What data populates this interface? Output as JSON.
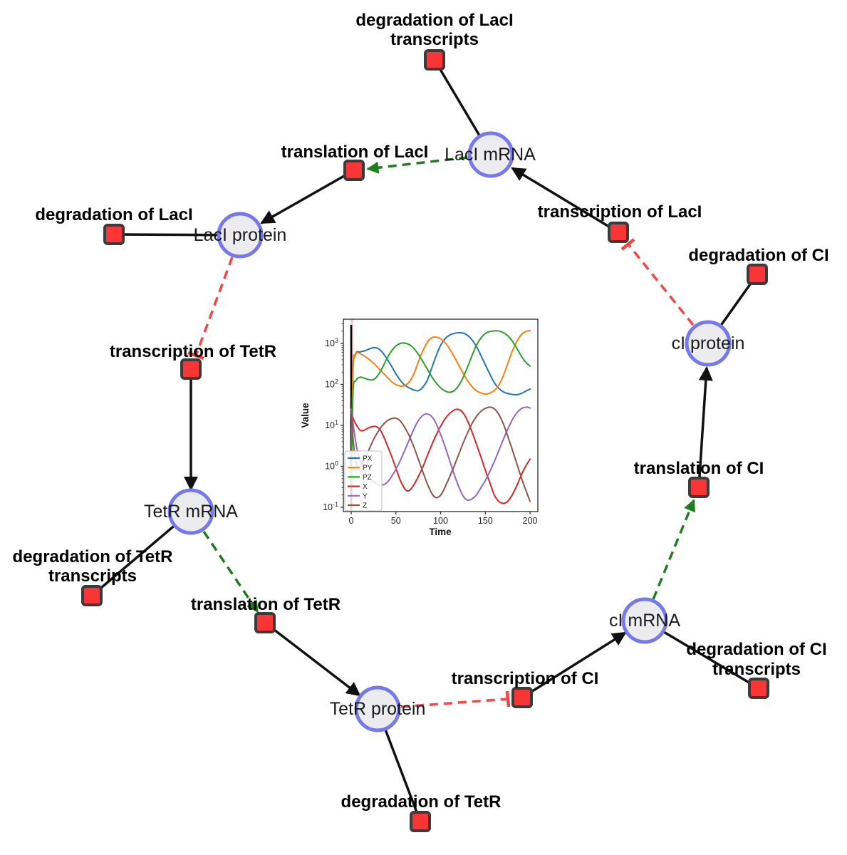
{
  "diagram": {
    "species": [
      {
        "id": "laci-mrna",
        "label": "LacI mRNA"
      },
      {
        "id": "laci-protein",
        "label": "LacI protein"
      },
      {
        "id": "tetr-mrna",
        "label": "TetR mRNA"
      },
      {
        "id": "tetr-protein",
        "label": "TetR protein"
      },
      {
        "id": "ci-mrna",
        "label": "cI mRNA"
      },
      {
        "id": "ci-protein",
        "label": "cI protein"
      }
    ],
    "reactions": [
      {
        "id": "degradation-laci-transcripts",
        "label_lines": [
          "degradation of LacI",
          "transcripts"
        ]
      },
      {
        "id": "translation-laci",
        "label": "translation of LacI"
      },
      {
        "id": "degradation-laci",
        "label": "degradation of LacI"
      },
      {
        "id": "transcription-tetr",
        "label": "transcription of TetR"
      },
      {
        "id": "degradation-tetr-transcripts",
        "label_lines": [
          "degradation of TetR",
          "transcripts"
        ]
      },
      {
        "id": "translation-tetr",
        "label": "translation of TetR"
      },
      {
        "id": "degradation-tetr",
        "label": "degradation of TetR"
      },
      {
        "id": "transcription-ci",
        "label": "transcription of CI"
      },
      {
        "id": "degradation-ci-transcripts",
        "label_lines": [
          "degradation of CI",
          "transcripts"
        ]
      },
      {
        "id": "translation-ci",
        "label": "translation of CI"
      },
      {
        "id": "degradation-ci",
        "label": "degradation of CI"
      },
      {
        "id": "transcription-laci",
        "label": "transcription of LacI"
      }
    ],
    "colors": {
      "species_fill": "#ececee",
      "species_border": "#7678ee",
      "reaction_fill": "#f93535",
      "reaction_border": "#3b3b3b",
      "edge_black": "#111111",
      "edge_activation": "#1e7d1e",
      "edge_inhibition": "#f54545"
    }
  },
  "chart_data": {
    "type": "line",
    "title": "",
    "xlabel": "Time",
    "ylabel": "Value",
    "x_ticks": [
      0,
      50,
      100,
      150,
      200
    ],
    "y_scale": "log",
    "y_tick_exponents": [
      -1,
      0,
      1,
      2,
      3
    ],
    "xlim": [
      -10,
      210
    ],
    "ylim_log": [
      -1.1,
      3.6
    ],
    "grid": false,
    "legend_position": "lower left",
    "axvline": {
      "x": 0,
      "color": "#000000"
    },
    "startup_band": {
      "x0": -0.7,
      "x1": 2.5,
      "color": "#d98080",
      "opacity": 0.4
    },
    "series": [
      {
        "name": "PX",
        "color": "#1f77b4",
        "points": [
          [
            0,
            0.3
          ],
          [
            2,
            200
          ],
          [
            5,
            560
          ],
          [
            10,
            620
          ],
          [
            15,
            660
          ],
          [
            20,
            730
          ],
          [
            25,
            790
          ],
          [
            30,
            755
          ],
          [
            35,
            600
          ],
          [
            40,
            420
          ],
          [
            45,
            280
          ],
          [
            50,
            180
          ],
          [
            55,
            125
          ],
          [
            60,
            95
          ],
          [
            65,
            82
          ],
          [
            70,
            73
          ],
          [
            75,
            70
          ],
          [
            80,
            85
          ],
          [
            85,
            125
          ],
          [
            90,
            250
          ],
          [
            95,
            500
          ],
          [
            100,
            900
          ],
          [
            105,
            1300
          ],
          [
            110,
            1600
          ],
          [
            115,
            1750
          ],
          [
            120,
            1820
          ],
          [
            125,
            1790
          ],
          [
            130,
            1580
          ],
          [
            135,
            1230
          ],
          [
            140,
            840
          ],
          [
            145,
            510
          ],
          [
            150,
            300
          ],
          [
            155,
            178
          ],
          [
            160,
            110
          ],
          [
            165,
            80
          ],
          [
            170,
            66
          ],
          [
            175,
            60
          ],
          [
            180,
            57
          ],
          [
            185,
            56
          ],
          [
            190,
            60
          ],
          [
            195,
            68
          ],
          [
            200,
            77
          ]
        ]
      },
      {
        "name": "PY",
        "color": "#ff7f0e",
        "points": [
          [
            0,
            0.3
          ],
          [
            2,
            250
          ],
          [
            4,
            480
          ],
          [
            6,
            585
          ],
          [
            8,
            590
          ],
          [
            10,
            565
          ],
          [
            15,
            490
          ],
          [
            20,
            410
          ],
          [
            25,
            330
          ],
          [
            30,
            255
          ],
          [
            35,
            196
          ],
          [
            40,
            152
          ],
          [
            45,
            118
          ],
          [
            50,
            99
          ],
          [
            55,
            91
          ],
          [
            60,
            94
          ],
          [
            65,
            116
          ],
          [
            70,
            180
          ],
          [
            75,
            350
          ],
          [
            80,
            650
          ],
          [
            85,
            1060
          ],
          [
            90,
            1380
          ],
          [
            95,
            1430
          ],
          [
            100,
            1300
          ],
          [
            105,
            1040
          ],
          [
            110,
            740
          ],
          [
            115,
            480
          ],
          [
            120,
            300
          ],
          [
            125,
            190
          ],
          [
            130,
            124
          ],
          [
            135,
            89
          ],
          [
            140,
            70
          ],
          [
            145,
            62
          ],
          [
            150,
            58
          ],
          [
            155,
            61
          ],
          [
            160,
            71
          ],
          [
            165,
            96
          ],
          [
            170,
            162
          ],
          [
            175,
            320
          ],
          [
            180,
            640
          ],
          [
            185,
            1100
          ],
          [
            190,
            1620
          ],
          [
            195,
            1960
          ],
          [
            200,
            2070
          ]
        ]
      },
      {
        "name": "PZ",
        "color": "#2ca02c",
        "points": [
          [
            0,
            0.3
          ],
          [
            2,
            60
          ],
          [
            5,
            122
          ],
          [
            10,
            150
          ],
          [
            15,
            141
          ],
          [
            20,
            131
          ],
          [
            25,
            131
          ],
          [
            30,
            168
          ],
          [
            35,
            260
          ],
          [
            40,
            430
          ],
          [
            45,
            650
          ],
          [
            50,
            870
          ],
          [
            55,
            1000
          ],
          [
            60,
            1020
          ],
          [
            65,
            935
          ],
          [
            70,
            755
          ],
          [
            75,
            545
          ],
          [
            80,
            365
          ],
          [
            85,
            238
          ],
          [
            90,
            155
          ],
          [
            95,
            109
          ],
          [
            100,
            82
          ],
          [
            105,
            69
          ],
          [
            110,
            64
          ],
          [
            115,
            70
          ],
          [
            120,
            92
          ],
          [
            125,
            146
          ],
          [
            130,
            262
          ],
          [
            135,
            500
          ],
          [
            140,
            900
          ],
          [
            145,
            1350
          ],
          [
            150,
            1750
          ],
          [
            155,
            1950
          ],
          [
            160,
            2030
          ],
          [
            165,
            2010
          ],
          [
            170,
            1845
          ],
          [
            175,
            1545
          ],
          [
            180,
            1150
          ],
          [
            185,
            775
          ],
          [
            190,
            500
          ],
          [
            195,
            350
          ],
          [
            200,
            280
          ]
        ]
      },
      {
        "name": "X",
        "color": "#d62728",
        "points": [
          [
            0,
            20
          ],
          [
            3,
            13.5
          ],
          [
            6,
            10
          ],
          [
            10,
            7.6
          ],
          [
            13,
            7.4
          ],
          [
            16,
            7.9
          ],
          [
            20,
            8.8
          ],
          [
            25,
            9.4
          ],
          [
            28,
            9.3
          ],
          [
            32,
            8
          ],
          [
            36,
            5.5
          ],
          [
            40,
            3.4
          ],
          [
            45,
            1.8
          ],
          [
            50,
            0.9
          ],
          [
            55,
            0.45
          ],
          [
            60,
            0.28
          ],
          [
            63,
            0.25
          ],
          [
            66,
            0.27
          ],
          [
            70,
            0.35
          ],
          [
            75,
            0.56
          ],
          [
            80,
            0.95
          ],
          [
            85,
            1.8
          ],
          [
            90,
            3.3
          ],
          [
            95,
            5.8
          ],
          [
            100,
            9.5
          ],
          [
            105,
            14.5
          ],
          [
            110,
            19.5
          ],
          [
            115,
            23.5
          ],
          [
            118,
            24.8
          ],
          [
            122,
            23.4
          ],
          [
            126,
            19
          ],
          [
            130,
            13
          ],
          [
            135,
            7
          ],
          [
            140,
            3.5
          ],
          [
            145,
            1.7
          ],
          [
            150,
            0.8
          ],
          [
            155,
            0.4
          ],
          [
            160,
            0.2
          ],
          [
            165,
            0.14
          ],
          [
            170,
            0.125
          ],
          [
            175,
            0.14
          ],
          [
            180,
            0.2
          ],
          [
            185,
            0.33
          ],
          [
            190,
            0.6
          ],
          [
            195,
            1
          ],
          [
            200,
            1.5
          ]
        ]
      },
      {
        "name": "Y",
        "color": "#9467bd",
        "points": [
          [
            0,
            25
          ],
          [
            3,
            8
          ],
          [
            6,
            3
          ],
          [
            10,
            1.4
          ],
          [
            15,
            0.75
          ],
          [
            20,
            0.52
          ],
          [
            25,
            0.42
          ],
          [
            30,
            0.37
          ],
          [
            34,
            0.35
          ],
          [
            38,
            0.37
          ],
          [
            42,
            0.45
          ],
          [
            46,
            0.6
          ],
          [
            50,
            0.85
          ],
          [
            55,
            1.4
          ],
          [
            60,
            2.5
          ],
          [
            65,
            4.5
          ],
          [
            70,
            8
          ],
          [
            75,
            13
          ],
          [
            80,
            17.5
          ],
          [
            83,
            19
          ],
          [
            87,
            18.4
          ],
          [
            91,
            15.5
          ],
          [
            95,
            11
          ],
          [
            100,
            6
          ],
          [
            105,
            3
          ],
          [
            110,
            1.4
          ],
          [
            115,
            0.65
          ],
          [
            120,
            0.33
          ],
          [
            125,
            0.19
          ],
          [
            130,
            0.15
          ],
          [
            135,
            0.16
          ],
          [
            140,
            0.2
          ],
          [
            145,
            0.3
          ],
          [
            150,
            0.45
          ],
          [
            155,
            0.75
          ],
          [
            160,
            1.3
          ],
          [
            165,
            2.4
          ],
          [
            170,
            4.5
          ],
          [
            175,
            8
          ],
          [
            180,
            13.5
          ],
          [
            185,
            20
          ],
          [
            190,
            25.5
          ],
          [
            194,
            27.5
          ],
          [
            197,
            27.8
          ],
          [
            200,
            26.5
          ]
        ]
      },
      {
        "name": "Z",
        "color": "#8c564b",
        "points": [
          [
            0,
            25
          ],
          [
            2,
            5
          ],
          [
            5,
            1.4
          ],
          [
            8,
            0.95
          ],
          [
            11,
            1.05
          ],
          [
            15,
            1.5
          ],
          [
            20,
            2.6
          ],
          [
            25,
            4.5
          ],
          [
            30,
            7
          ],
          [
            35,
            10
          ],
          [
            40,
            12.8
          ],
          [
            45,
            14.6
          ],
          [
            48,
            15
          ],
          [
            52,
            14.4
          ],
          [
            56,
            12
          ],
          [
            60,
            8.8
          ],
          [
            65,
            5.5
          ],
          [
            70,
            3
          ],
          [
            75,
            1.5
          ],
          [
            80,
            0.75
          ],
          [
            85,
            0.38
          ],
          [
            90,
            0.22
          ],
          [
            94,
            0.175
          ],
          [
            98,
            0.18
          ],
          [
            102,
            0.23
          ],
          [
            106,
            0.35
          ],
          [
            110,
            0.55
          ],
          [
            115,
            1
          ],
          [
            120,
            1.9
          ],
          [
            125,
            3.6
          ],
          [
            130,
            6.5
          ],
          [
            135,
            11
          ],
          [
            140,
            16.5
          ],
          [
            145,
            22
          ],
          [
            150,
            26
          ],
          [
            154,
            27.8
          ],
          [
            158,
            27
          ],
          [
            162,
            23
          ],
          [
            166,
            17
          ],
          [
            170,
            11
          ],
          [
            175,
            5.5
          ],
          [
            180,
            2.6
          ],
          [
            185,
            1.2
          ],
          [
            190,
            0.55
          ],
          [
            195,
            0.27
          ],
          [
            200,
            0.14
          ]
        ]
      }
    ]
  }
}
